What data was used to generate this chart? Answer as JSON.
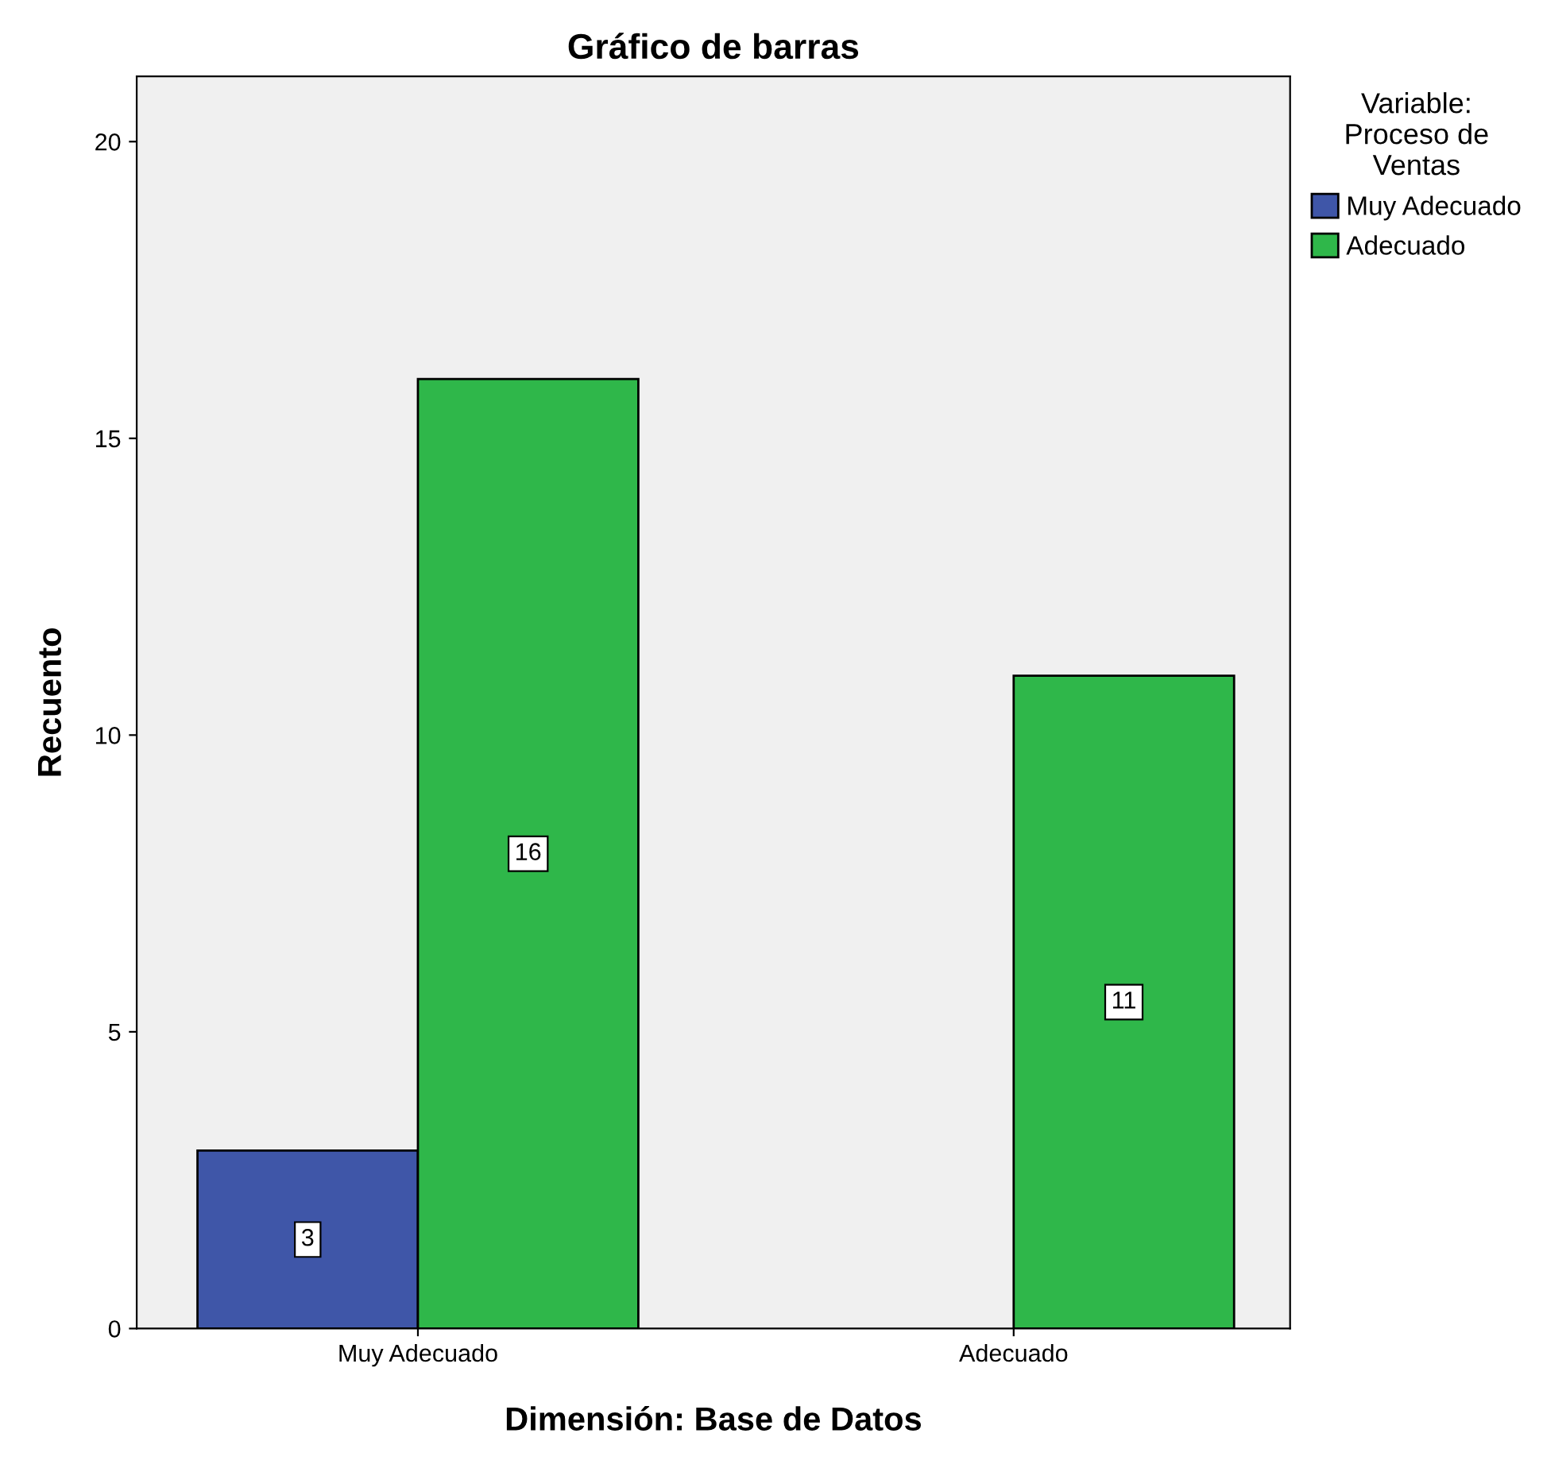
{
  "chart_data": {
    "type": "bar",
    "title": "Gráfico de barras",
    "xlabel": "Dimensión: Base de Datos",
    "ylabel": "Recuento",
    "legend_title": "Variable:\nProceso de\nVentas",
    "categories": [
      "Muy Adecuado",
      "Adecuado"
    ],
    "series": [
      {
        "name": "Muy Adecuado",
        "color": "#3f56a8",
        "values": [
          3,
          null
        ]
      },
      {
        "name": "Adecuado",
        "color": "#2fb74a",
        "values": [
          16,
          11
        ]
      }
    ],
    "ylim": [
      0,
      21.1
    ],
    "yticks": [
      0,
      5,
      10,
      15,
      20
    ],
    "grid": false,
    "legend": "top right",
    "data_labels": true
  }
}
